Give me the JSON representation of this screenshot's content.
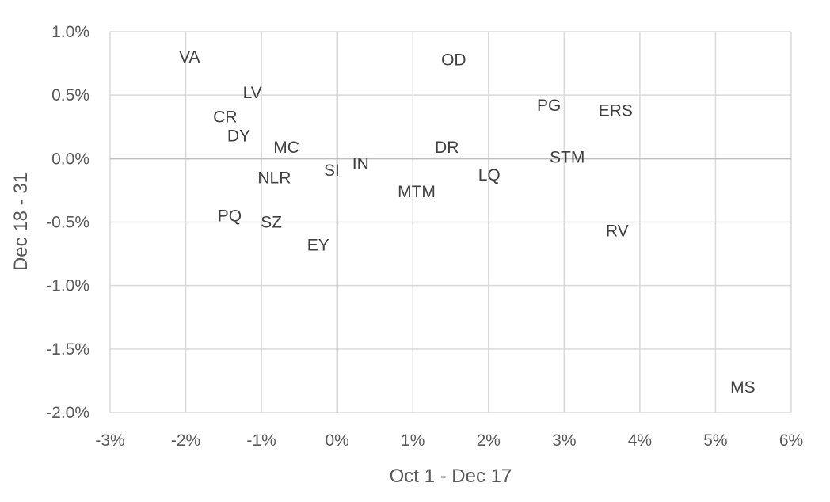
{
  "chart_data": {
    "type": "scatter",
    "title": "",
    "xlabel": "Oct 1 - Dec 17",
    "ylabel": "Dec 18 - 31",
    "xlim": [
      -0.03,
      0.06
    ],
    "ylim": [
      -0.02,
      0.01
    ],
    "x_ticks": [
      -0.03,
      -0.02,
      -0.01,
      0,
      0.01,
      0.02,
      0.03,
      0.04,
      0.05,
      0.06
    ],
    "x_tick_labels": [
      "-3%",
      "-2%",
      "-1%",
      "0%",
      "1%",
      "2%",
      "3%",
      "4%",
      "5%",
      "6%"
    ],
    "y_ticks": [
      0.01,
      0.005,
      0,
      -0.005,
      -0.01,
      -0.015,
      -0.02
    ],
    "y_tick_labels": [
      "1.0%",
      "0.5%",
      "0.0%",
      "-0.5%",
      "-1.0%",
      "-1.5%",
      "-2.0%"
    ],
    "grid": true,
    "legend": "none",
    "marker": "label-only",
    "colors": {
      "grid": "#d9d9d9",
      "zero_axis": "#bfbfbf",
      "text": "#595959",
      "label": "#404040"
    },
    "points": [
      {
        "label": "VA",
        "x": -0.0195,
        "y": 0.008
      },
      {
        "label": "LV",
        "x": -0.0112,
        "y": 0.0052
      },
      {
        "label": "CR",
        "x": -0.0148,
        "y": 0.0033
      },
      {
        "label": "DY",
        "x": -0.013,
        "y": 0.0018
      },
      {
        "label": "MC",
        "x": -0.0067,
        "y": 0.0009
      },
      {
        "label": "NLR",
        "x": -0.0083,
        "y": -0.0015
      },
      {
        "label": "SI",
        "x": -0.0007,
        "y": -0.0009
      },
      {
        "label": "IN",
        "x": 0.0031,
        "y": -0.0004
      },
      {
        "label": "PQ",
        "x": -0.0142,
        "y": -0.0045
      },
      {
        "label": "SZ",
        "x": -0.0087,
        "y": -0.005
      },
      {
        "label": "EY",
        "x": -0.0025,
        "y": -0.0068
      },
      {
        "label": "OD",
        "x": 0.0154,
        "y": 0.0078
      },
      {
        "label": "DR",
        "x": 0.0145,
        "y": 0.0009
      },
      {
        "label": "MTM",
        "x": 0.0105,
        "y": -0.0026
      },
      {
        "label": "LQ",
        "x": 0.0201,
        "y": -0.0013
      },
      {
        "label": "PG",
        "x": 0.028,
        "y": 0.0042
      },
      {
        "label": "ERS",
        "x": 0.0368,
        "y": 0.0038
      },
      {
        "label": "STM",
        "x": 0.0304,
        "y": 0.0001
      },
      {
        "label": "RV",
        "x": 0.037,
        "y": -0.0057
      },
      {
        "label": "MS",
        "x": 0.0536,
        "y": -0.018
      }
    ]
  }
}
